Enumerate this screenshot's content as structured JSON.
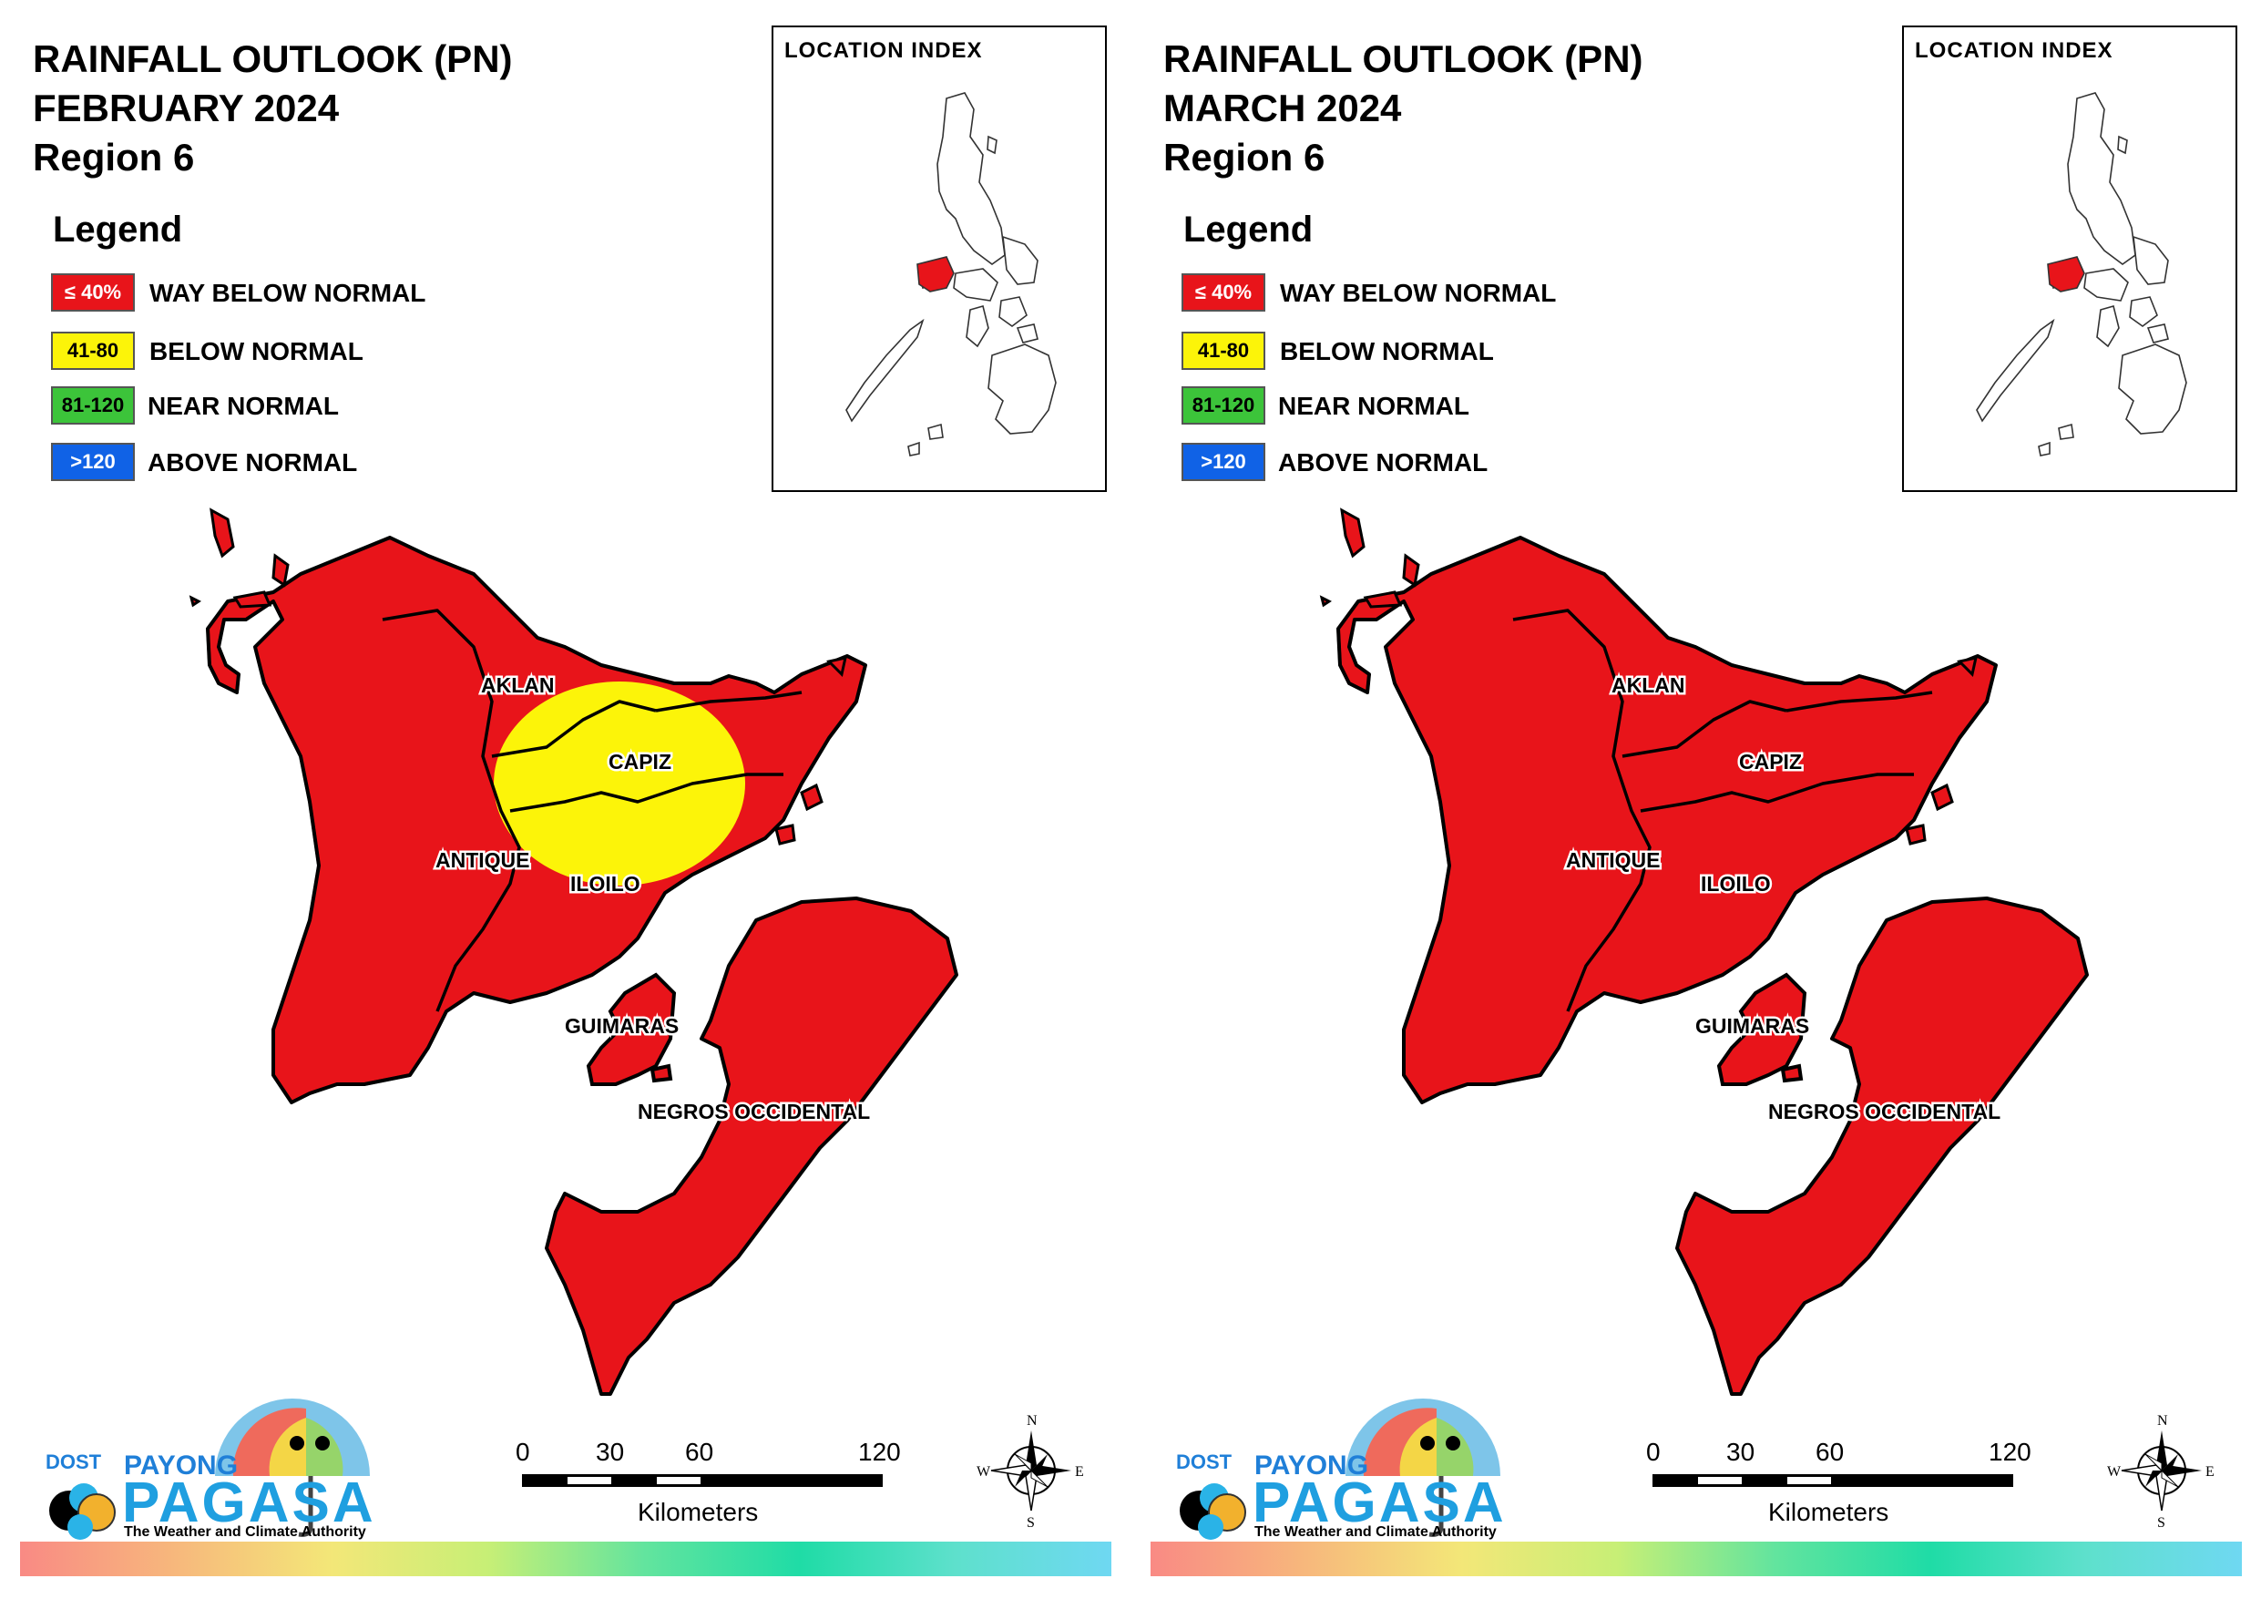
{
  "panels": [
    {
      "title_line1": "RAINFALL OUTLOOK (PN)",
      "title_line2": "FEBRUARY 2024",
      "title_line3": "Region 6",
      "legend_title": "Legend",
      "inset_title": "LOCATION INDEX",
      "legend": [
        {
          "range": "≤ 40%",
          "label": "WAY BELOW NORMAL",
          "color": "#e8141a"
        },
        {
          "range": "41-80",
          "label": "BELOW NORMAL",
          "color": "#fcf409"
        },
        {
          "range": "81-120",
          "label": "NEAR NORMAL",
          "color": "#3cc43a"
        },
        {
          "range": ">120",
          "label": "ABOVE NORMAL",
          "color": "#1062e6"
        }
      ],
      "provinces": [
        "AKLAN",
        "CAPIZ",
        "ANTIQUE",
        "ILOILO",
        "GUIMARAS",
        "NEGROS OCCIDENTAL"
      ],
      "below_normal_zone": "Aklan–Capiz–Iloilo",
      "scale": {
        "ticks": [
          "0",
          "30",
          "60",
          "120"
        ],
        "unit": "Kilometers"
      },
      "compass": {
        "n": "N",
        "e": "E",
        "s": "S",
        "w": "W"
      },
      "logo": {
        "dost": "DOST",
        "payong": "PAYONG",
        "pagasa": "PAGASA",
        "tagline": "The Weather and Climate Authority"
      }
    },
    {
      "title_line1": "RAINFALL OUTLOOK (PN)",
      "title_line2": "MARCH 2024",
      "title_line3": "Region 6",
      "legend_title": "Legend",
      "inset_title": "LOCATION INDEX",
      "legend": [
        {
          "range": "≤ 40%",
          "label": "WAY BELOW NORMAL",
          "color": "#e8141a"
        },
        {
          "range": "41-80",
          "label": "BELOW NORMAL",
          "color": "#fcf409"
        },
        {
          "range": "81-120",
          "label": "NEAR NORMAL",
          "color": "#3cc43a"
        },
        {
          "range": ">120",
          "label": "ABOVE NORMAL",
          "color": "#1062e6"
        }
      ],
      "provinces": [
        "AKLAN",
        "CAPIZ",
        "ANTIQUE",
        "ILOILO",
        "GUIMARAS",
        "NEGROS OCCIDENTAL"
      ],
      "below_normal_zone": "none",
      "scale": {
        "ticks": [
          "0",
          "30",
          "60",
          "120"
        ],
        "unit": "Kilometers"
      },
      "compass": {
        "n": "N",
        "e": "E",
        "s": "S",
        "w": "W"
      },
      "logo": {
        "dost": "DOST",
        "payong": "PAYONG",
        "pagasa": "PAGASA",
        "tagline": "The Weather and Climate Authority"
      }
    }
  ]
}
